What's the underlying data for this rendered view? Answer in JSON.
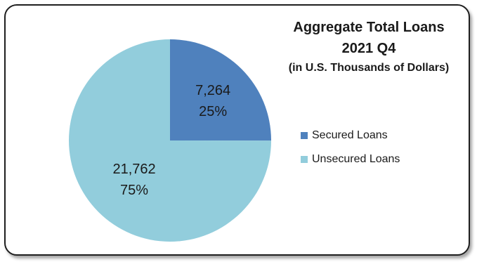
{
  "chart_data": {
    "type": "pie",
    "title": [
      "Aggregate Total Loans",
      "2021 Q4",
      "(in U.S. Thousands of Dollars)"
    ],
    "slices": [
      {
        "name": "Secured Loans",
        "value": 7264,
        "value_label": "7,264",
        "percent_label": "25%",
        "color": "#4f81bd"
      },
      {
        "name": "Unsecured Loans",
        "value": 21762,
        "value_label": "21,762",
        "percent_label": "75%",
        "color": "#92cddc"
      }
    ],
    "legend_position": "right"
  }
}
